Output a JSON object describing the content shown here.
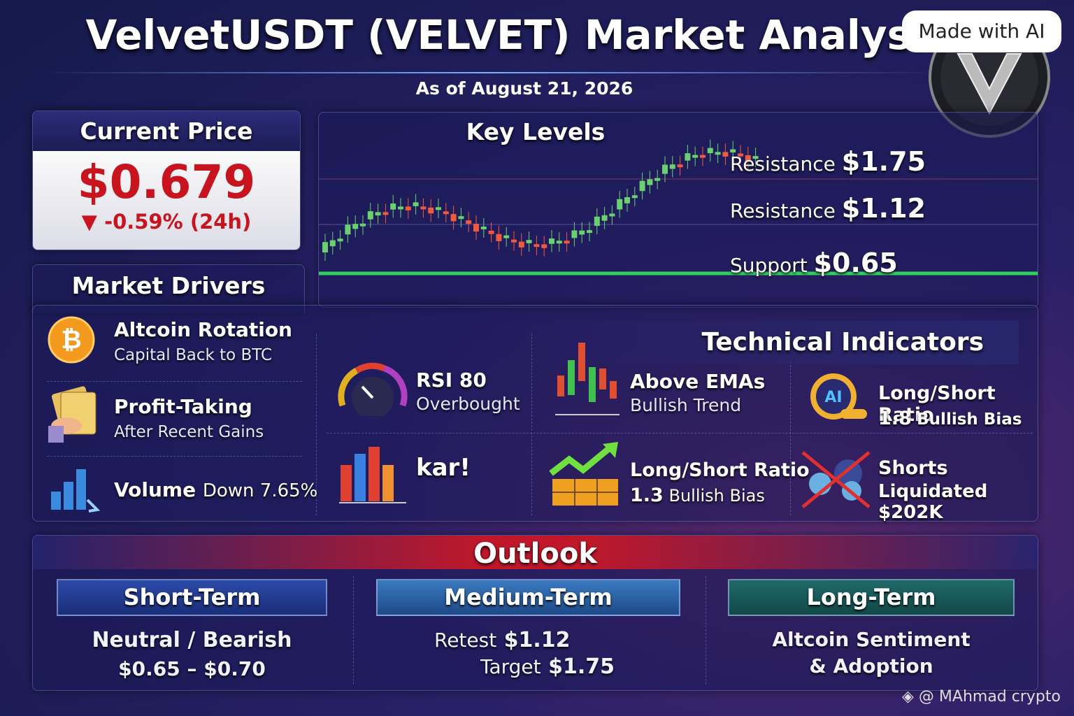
{
  "header": {
    "title": "VelvetUSDT (VELVET) Market Analysis",
    "badge": "Made with AI",
    "date": "As of August 21, 2026"
  },
  "current_price": {
    "title": "Current Price",
    "price": "$0.679",
    "change": "-0.59% (24h)"
  },
  "key_levels": {
    "title": "Key Levels",
    "levels": [
      {
        "label": "Resistance",
        "value": "$1.75"
      },
      {
        "label": "Resistance",
        "value": "$1.12"
      },
      {
        "label": "Support",
        "value": "$0.65"
      }
    ]
  },
  "market_drivers": {
    "title": "Market Drivers",
    "items": [
      {
        "title": "Altcoin Rotation",
        "subtitle": "Capital Back to BTC"
      },
      {
        "title": "Profit-Taking",
        "subtitle": "After Recent Gains"
      },
      {
        "title": "Volume",
        "subtitle": "Down 7.65%"
      }
    ]
  },
  "technical_indicators": {
    "title": "Technical Indicators",
    "items": [
      {
        "title": "RSI 80",
        "subtitle": "Overbought"
      },
      {
        "title": "Above EMAs",
        "subtitle": "Bullish Trend"
      },
      {
        "title": "Long/Short Ratio",
        "value": "1.8",
        "subtitle": "Bullish Bias"
      },
      {
        "title": "kar!"
      },
      {
        "title": "Long/Short Ratio",
        "value": "1.3",
        "subtitle": "Bullish Bias"
      },
      {
        "title": "Shorts",
        "subtitle": "Liquidated $202K"
      }
    ]
  },
  "outlook": {
    "title": "Outlook",
    "columns": [
      {
        "title": "Short-Term",
        "lines": [
          "Neutral / Bearish",
          "$0.65 – $0.70"
        ]
      },
      {
        "title": "Medium-Term",
        "lines": [
          {
            "label": "Retest",
            "value": "$1.12"
          },
          {
            "label": "Target",
            "value": "$1.75"
          }
        ]
      },
      {
        "title": "Long-Term",
        "lines": [
          "Altcoin Sentiment",
          "& Adoption"
        ]
      }
    ]
  },
  "footer": {
    "credit": "@ MAhmad crypto"
  }
}
